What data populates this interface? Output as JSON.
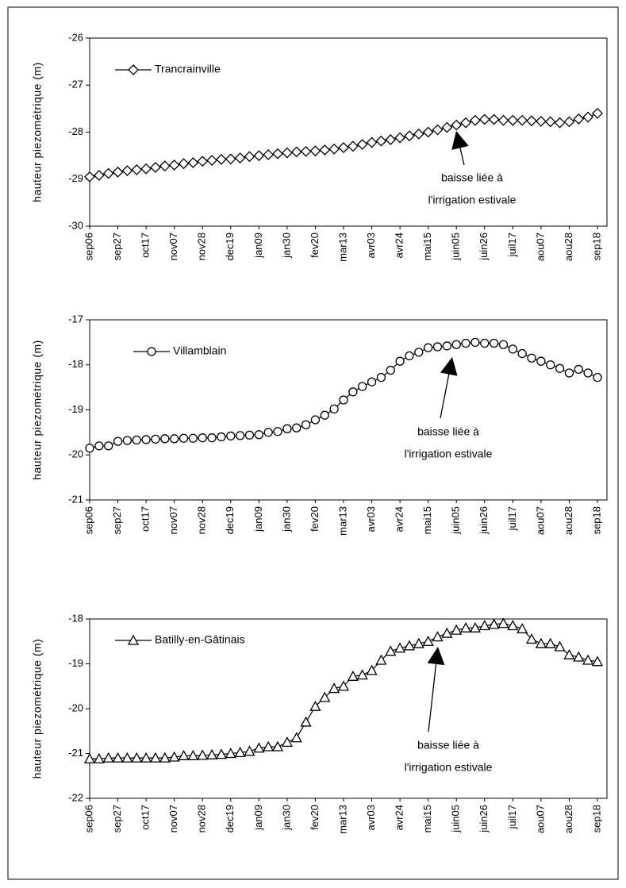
{
  "chart_data": [
    {
      "type": "line",
      "y_label": "hauteur piezométrique (m)",
      "categories": [
        "sep06",
        null,
        null,
        "sep27",
        null,
        null,
        "oct17",
        null,
        null,
        "nov07",
        null,
        null,
        "nov28",
        null,
        null,
        "dec19",
        null,
        null,
        "jan09",
        null,
        null,
        "jan30",
        null,
        null,
        "fev20",
        null,
        null,
        "mar13",
        null,
        null,
        "avr03",
        null,
        null,
        "avr24",
        null,
        null,
        "mai15",
        null,
        null,
        "juin05",
        null,
        null,
        "juin26",
        null,
        null,
        "juil17",
        null,
        null,
        "aou07",
        null,
        null,
        "aou28",
        null,
        null,
        "sep18"
      ],
      "series": [
        {
          "name": "Trancrainville",
          "marker": "diamond",
          "color": "#000000",
          "values": [
            -28.95,
            -28.92,
            -28.88,
            -28.85,
            -28.82,
            -28.8,
            -28.78,
            -28.75,
            -28.72,
            -28.7,
            -28.67,
            -28.65,
            -28.62,
            -28.6,
            -28.58,
            -28.57,
            -28.55,
            -28.52,
            -28.5,
            -28.48,
            -28.46,
            -28.44,
            -28.42,
            -28.41,
            -28.4,
            -28.38,
            -28.36,
            -28.33,
            -28.3,
            -28.26,
            -28.22,
            -28.19,
            -28.16,
            -28.12,
            -28.08,
            -28.04,
            -28.0,
            -27.95,
            -27.9,
            -27.85,
            -27.8,
            -27.75,
            -27.73,
            -27.73,
            -27.75,
            -27.75,
            -27.75,
            -27.76,
            -27.77,
            -27.78,
            -27.8,
            -27.78,
            -27.72,
            -27.68,
            -27.6
          ]
        }
      ],
      "ylim": [
        -30,
        -26
      ],
      "yticks": [
        -30,
        -29,
        -28,
        -27,
        -26
      ],
      "annotation": [
        "baisse liée à",
        "l'irrigation estivale"
      ]
    },
    {
      "type": "line",
      "y_label": "hauteur piezométrique (m)",
      "categories": [
        "sep06",
        null,
        null,
        "sep27",
        null,
        null,
        "oct17",
        null,
        null,
        "nov07",
        null,
        null,
        "nov28",
        null,
        null,
        "dec19",
        null,
        null,
        "jan09",
        null,
        null,
        "jan30",
        null,
        null,
        "fev20",
        null,
        null,
        "mar13",
        null,
        null,
        "avr03",
        null,
        null,
        "avr24",
        null,
        null,
        "mai15",
        null,
        null,
        "juin05",
        null,
        null,
        "juin26",
        null,
        null,
        "juil17",
        null,
        null,
        "aou07",
        null,
        null,
        "aou28",
        null,
        null,
        "sep18"
      ],
      "series": [
        {
          "name": "Villamblain",
          "marker": "circle",
          "color": "#000000",
          "values": [
            -19.85,
            -19.8,
            -19.8,
            -19.7,
            -19.68,
            -19.67,
            -19.66,
            -19.65,
            -19.64,
            -19.64,
            -19.63,
            -19.63,
            -19.62,
            -19.62,
            -19.6,
            -19.58,
            -19.57,
            -19.56,
            -19.55,
            -19.5,
            -19.48,
            -19.42,
            -19.4,
            -19.33,
            -19.22,
            -19.12,
            -18.98,
            -18.78,
            -18.6,
            -18.48,
            -18.38,
            -18.28,
            -18.12,
            -17.92,
            -17.8,
            -17.72,
            -17.62,
            -17.6,
            -17.58,
            -17.55,
            -17.52,
            -17.5,
            -17.52,
            -17.52,
            -17.55,
            -17.65,
            -17.75,
            -17.85,
            -17.92,
            -18.0,
            -18.08,
            -18.18,
            -18.1,
            -18.18,
            -18.28
          ]
        }
      ],
      "ylim": [
        -21,
        -17
      ],
      "yticks": [
        -21,
        -20,
        -19,
        -18,
        -17
      ],
      "annotation": [
        "baisse liée à",
        "l'irrigation estivale"
      ]
    },
    {
      "type": "line",
      "y_label": "hauteur piezométrique (m)",
      "categories": [
        "sep06",
        null,
        null,
        "sep27",
        null,
        null,
        "oct17",
        null,
        null,
        "nov07",
        null,
        null,
        "nov28",
        null,
        null,
        "dec19",
        null,
        null,
        "jan09",
        null,
        null,
        "jan30",
        null,
        null,
        "fev20",
        null,
        null,
        "mar13",
        null,
        null,
        "avr03",
        null,
        null,
        "avr24",
        null,
        null,
        "mai15",
        null,
        null,
        "juin05",
        null,
        null,
        "juin26",
        null,
        null,
        "juil17",
        null,
        null,
        "aou07",
        null,
        null,
        "aou28",
        null,
        null,
        "sep18"
      ],
      "series": [
        {
          "name": "Batilly-en-Gâtinais",
          "marker": "triangle",
          "color": "#000000",
          "values": [
            -21.12,
            -21.12,
            -21.1,
            -21.1,
            -21.1,
            -21.1,
            -21.1,
            -21.1,
            -21.1,
            -21.08,
            -21.05,
            -21.05,
            -21.04,
            -21.03,
            -21.02,
            -21.0,
            -20.98,
            -20.95,
            -20.88,
            -20.85,
            -20.85,
            -20.75,
            -20.65,
            -20.3,
            -19.95,
            -19.75,
            -19.55,
            -19.5,
            -19.28,
            -19.25,
            -19.15,
            -18.92,
            -18.72,
            -18.65,
            -18.6,
            -18.55,
            -18.5,
            -18.4,
            -18.32,
            -18.25,
            -18.2,
            -18.2,
            -18.15,
            -18.12,
            -18.1,
            -18.15,
            -18.22,
            -18.45,
            -18.55,
            -18.55,
            -18.62,
            -18.8,
            -18.85,
            -18.92,
            -18.95
          ]
        }
      ],
      "ylim": [
        -22,
        -18
      ],
      "yticks": [
        -22,
        -21,
        -20,
        -19,
        -18
      ],
      "annotation": [
        "baisse liée à",
        "l'irrigation estivale"
      ]
    }
  ]
}
